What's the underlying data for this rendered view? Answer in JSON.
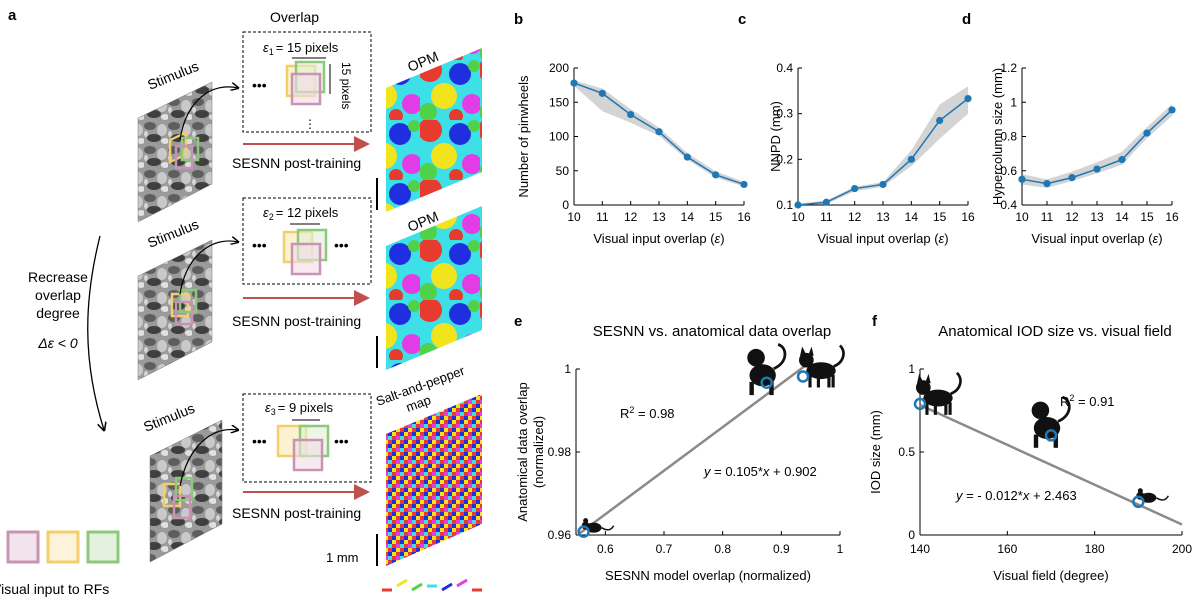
{
  "panel_a": {
    "label": "a",
    "overlap_title": "Overlap",
    "stimulus_label": "Stimulus",
    "post_training_label": "SESNN post-training",
    "rows": [
      {
        "eps_sym": "ε",
        "eps_sub": "1",
        "eps_text": "= 15 pixels",
        "side_label": "15 pixels",
        "map_label": "OPM"
      },
      {
        "eps_sym": "ε",
        "eps_sub": "2",
        "eps_text": "= 12 pixels",
        "map_label": "OPM"
      },
      {
        "eps_sym": "ε",
        "eps_sub": "3",
        "eps_text": "= 9 pixels",
        "map_label_1": "Salt-and-pepper",
        "map_label_2": "map"
      }
    ],
    "left_note": {
      "line1": "Recrease",
      "line2": "overlap",
      "line3": "degree",
      "line4": "Δε < 0"
    },
    "scale_bar_label": "1 mm",
    "legend_caption": "Visual input to RFs",
    "rf_colors": [
      "#c994b3",
      "#f3cf6b",
      "#8ec97b"
    ],
    "orientation_colors": [
      "#e63b2e",
      "#f2e41c",
      "#4fd14a",
      "#3ee0e8",
      "#1f2fe0",
      "#e23ce6",
      "#e63b2e"
    ]
  },
  "chart_data": [
    {
      "panel": "b",
      "type": "line",
      "x": [
        10,
        11,
        12,
        13,
        14,
        15,
        16
      ],
      "series": [
        {
          "values": [
            178,
            163,
            132,
            107,
            70,
            44,
            30
          ]
        }
      ],
      "band_upper": [
        182,
        170,
        140,
        113,
        76,
        49,
        34
      ],
      "band_lower": [
        174,
        137,
        120,
        101,
        66,
        40,
        27
      ],
      "xlabel": "Visual input overlap (ε)",
      "ylabel": "Number of pinwheels",
      "xlim": [
        10,
        16
      ],
      "ylim": [
        0,
        200
      ],
      "xticks": [
        10,
        11,
        12,
        13,
        14,
        15,
        16
      ],
      "yticks": [
        0,
        50,
        100,
        150,
        200
      ],
      "ytick_labels": [
        "0",
        "50",
        "100",
        "150",
        "200"
      ]
    },
    {
      "panel": "c",
      "type": "line",
      "x": [
        10,
        11,
        12,
        13,
        14,
        15,
        16
      ],
      "series": [
        {
          "values": [
            0.1,
            0.106,
            0.136,
            0.145,
            0.2,
            0.285,
            0.333
          ]
        }
      ],
      "band_upper": [
        0.103,
        0.11,
        0.14,
        0.15,
        0.22,
        0.32,
        0.36
      ],
      "band_lower": [
        0.097,
        0.102,
        0.13,
        0.14,
        0.185,
        0.245,
        0.3
      ],
      "xlabel": "Visual input overlap (ε)",
      "ylabel": "NNPD (mm)",
      "xlim": [
        10,
        16
      ],
      "ylim": [
        0.1,
        0.4
      ],
      "xticks": [
        10,
        11,
        12,
        13,
        14,
        15,
        16
      ],
      "yticks": [
        0.1,
        0.2,
        0.3,
        0.4
      ],
      "ytick_labels": [
        "0.1",
        "0.2",
        "0.3",
        "0.4"
      ]
    },
    {
      "panel": "d",
      "type": "line",
      "x": [
        10,
        11,
        12,
        13,
        14,
        15,
        16
      ],
      "series": [
        {
          "values": [
            0.55,
            0.525,
            0.56,
            0.61,
            0.665,
            0.82,
            0.955
          ]
        }
      ],
      "band_upper": [
        0.58,
        0.55,
        0.595,
        0.65,
        0.71,
        0.855,
        0.99
      ],
      "band_lower": [
        0.52,
        0.5,
        0.54,
        0.585,
        0.635,
        0.79,
        0.92
      ],
      "xlabel": "Visual input overlap (ε)",
      "ylabel": "Hypercolumn size (mm)",
      "xlim": [
        10,
        16
      ],
      "ylim": [
        0.4,
        1.2
      ],
      "xticks": [
        10,
        11,
        12,
        13,
        14,
        15,
        16
      ],
      "yticks": [
        0.4,
        0.6,
        0.8,
        1.0,
        1.2
      ],
      "ytick_labels": [
        "0.4",
        "0.6",
        "0.8",
        "1",
        "1.2"
      ]
    },
    {
      "panel": "e",
      "type": "scatter",
      "title": "SESNN vs. anatomical data overlap",
      "points": [
        {
          "x": 0.563,
          "y": 0.9608,
          "animal": "mouse"
        },
        {
          "x": 0.875,
          "y": 0.9967,
          "animal": "monkey"
        },
        {
          "x": 0.937,
          "y": 0.9982,
          "animal": "cat"
        }
      ],
      "fit": {
        "slope": 0.105,
        "intercept": 0.902,
        "x_range": [
          0.555,
          0.945
        ]
      },
      "fit_label": "y = 0.105*x + 0.902",
      "r2_label": "R² = 0.98",
      "xlabel": "SESNN model overlap (normalized)",
      "ylabel_1": "Anatomical data overlap",
      "ylabel_2": "(normalized)",
      "xlim": [
        0.55,
        1.0
      ],
      "ylim": [
        0.96,
        1.0
      ],
      "xticks": [
        0.6,
        0.7,
        0.8,
        0.9,
        1.0
      ],
      "xtick_labels": [
        "0.6",
        "0.7",
        "0.8",
        "0.9",
        "1"
      ],
      "yticks": [
        0.96,
        0.98,
        1.0
      ],
      "ytick_labels": [
        "0.96",
        "0.98",
        "1"
      ]
    },
    {
      "panel": "f",
      "type": "scatter",
      "title": "Anatomical IOD size vs. visual field",
      "points": [
        {
          "x": 140,
          "y": 0.79,
          "animal": "cat"
        },
        {
          "x": 170,
          "y": 0.6,
          "animal": "monkey"
        },
        {
          "x": 190,
          "y": 0.2,
          "animal": "mouse"
        }
      ],
      "fit": {
        "slope": -0.012,
        "intercept": 2.463,
        "x_range": [
          140,
          200
        ]
      },
      "fit_label": "y = - 0.012*x + 2.463",
      "r2_label": "R² = 0.91",
      "xlabel": "Visual field (degree)",
      "ylabel": "IOD size (mm)",
      "xlim": [
        140,
        200
      ],
      "ylim": [
        0,
        1
      ],
      "xticks": [
        140,
        160,
        180,
        200
      ],
      "xtick_labels": [
        "140",
        "160",
        "180",
        "200"
      ],
      "yticks": [
        0,
        0.5,
        1
      ],
      "ytick_labels": [
        "0",
        "0.5",
        "1"
      ]
    }
  ],
  "colors": {
    "line": "#1f77b4",
    "band": "#cccccc",
    "fit_line": "#8a8a8a",
    "marker_edge": "#1f77b4"
  }
}
